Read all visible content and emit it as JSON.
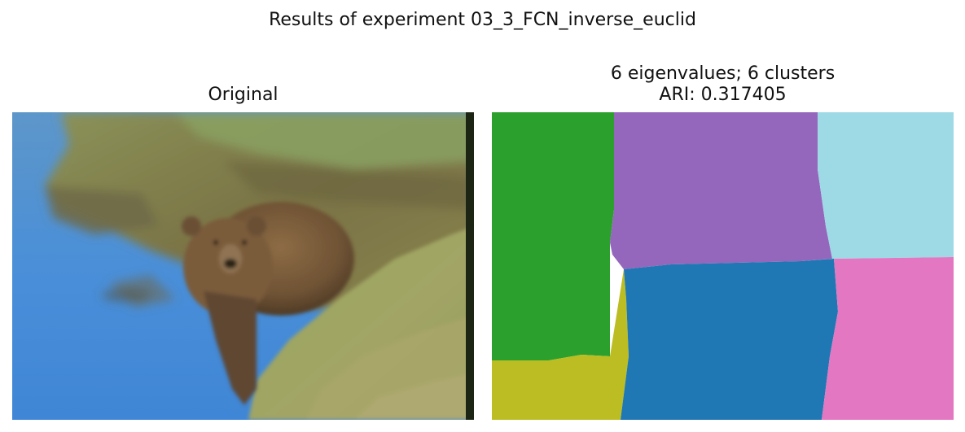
{
  "figure": {
    "title": "Results of experiment 03_3_FCN_inverse_euclid"
  },
  "panels": {
    "original": {
      "title": "Original"
    },
    "segmentation": {
      "title_line1": "6 eigenvalues; 6 clusters",
      "title_line2": "ARI: 0.317405",
      "cluster_colors": [
        "#2ca02c",
        "#9467bd",
        "#9edae5",
        "#bcbd22",
        "#1f77b4",
        "#e377c2"
      ]
    }
  }
}
